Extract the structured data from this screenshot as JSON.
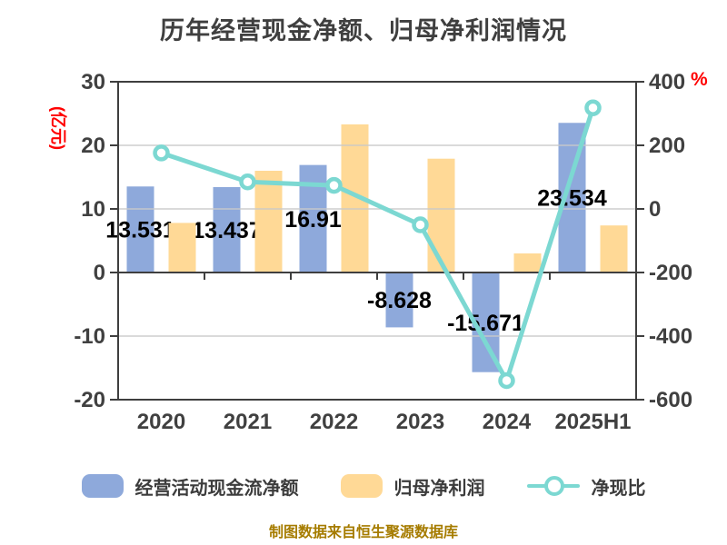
{
  "title": "历年经营现金净额、归母净利润情况",
  "footer": "制图数据来自恒生聚源数据库",
  "colors": {
    "cashflow_bar": "#8EA9DB",
    "profit_bar": "#FFD996",
    "ratio_line": "#7CD8D2",
    "axis_unit": "#FF0000",
    "tick_text": "#404040",
    "bar_label_text": "#000000",
    "grid_line": "#C9C9C9",
    "frame_line": "#3F3F3F",
    "footer_text": "#A67C00"
  },
  "left_axis": {
    "unit": "(亿元)",
    "ticks": [
      30,
      20,
      10,
      0,
      -10,
      -20
    ],
    "min": -20,
    "max": 30
  },
  "right_axis": {
    "unit": "%",
    "ticks": [
      400,
      200,
      0,
      -200,
      -400,
      -600
    ],
    "min": -600,
    "max": 400
  },
  "legend": [
    {
      "label": "经营活动现金流净额",
      "marker": "bar",
      "color": "#8EA9DB"
    },
    {
      "label": "归母净利润",
      "marker": "bar",
      "color": "#FFD996"
    },
    {
      "label": "净现比",
      "marker": "line",
      "color": "#7CD8D2"
    }
  ],
  "chart_data": {
    "type": "bar+line combo",
    "title": "历年经营现金净额、归母净利润情况",
    "categories": [
      "2020",
      "2021",
      "2022",
      "2023",
      "2024",
      "2025H1"
    ],
    "series": [
      {
        "name": "经营活动现金流净额",
        "type": "bar",
        "axis": "left",
        "color": "#8EA9DB",
        "values": [
          13.531,
          13.437,
          16.91,
          -8.628,
          -15.671,
          23.534
        ],
        "labels": [
          "13.531",
          "13.437",
          "16.91",
          "-8.628",
          "-15.671",
          "23.534"
        ]
      },
      {
        "name": "归母净利润",
        "type": "bar",
        "axis": "left",
        "color": "#FFD996",
        "values": [
          7.8,
          16.0,
          23.3,
          17.9,
          3.0,
          7.4
        ]
      },
      {
        "name": "净现比",
        "type": "line",
        "axis": "right",
        "color": "#7CD8D2",
        "values": [
          176,
          85,
          74,
          -50,
          -540,
          318
        ]
      }
    ],
    "left_ylabel": "(亿元)",
    "right_ylabel": "%",
    "left_ylim": [
      -20,
      30
    ],
    "right_ylim": [
      -600,
      400
    ],
    "grid": true,
    "legend_position": "bottom"
  }
}
